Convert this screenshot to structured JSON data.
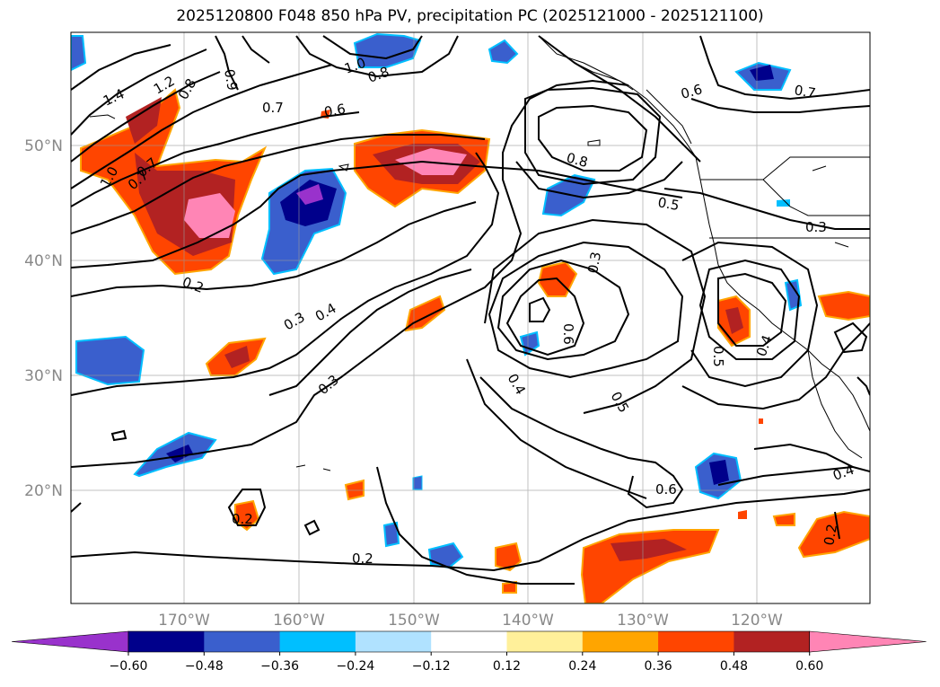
{
  "title": "2025120800 F048 850 hPa PV, precipitation PC (2025121000 - 2025121100)",
  "axes": {
    "lat_labels": [
      "50°N",
      "40°N",
      "30°N",
      "20°N"
    ],
    "lon_labels": [
      "170°W",
      "160°W",
      "150°W",
      "140°W",
      "130°W",
      "120°W"
    ]
  },
  "contour_labels": [
    "1.2",
    "1.4",
    "1.0",
    "0.7",
    "0.8",
    "0.9",
    "0.7",
    "0.6",
    "1.0",
    "0.8",
    "0.2",
    "0.6",
    "0.7",
    "0.5",
    "0.3",
    "0.8",
    "0.3",
    "0.4",
    "0.3",
    "0.6",
    "0.4",
    "0.5",
    "0.6",
    "0.5",
    "0.4",
    "0.2",
    "0.2",
    "0.4",
    "0.2",
    "0.3",
    "0.7"
  ],
  "colorbar": {
    "ticks": [
      "−0.60",
      "−0.48",
      "−0.36",
      "−0.24",
      "−0.12",
      "0.12",
      "0.24",
      "0.36",
      "0.48",
      "0.60"
    ],
    "colors": [
      "#9932cc",
      "#00008b",
      "#3a5fcd",
      "#00bfff",
      "#b0e2ff",
      "#ffffff",
      "#fff09a",
      "#ffa500",
      "#ff4500",
      "#b22222",
      "#ff85b5"
    ]
  },
  "precip_colors": {
    "pink": "#ff85b5",
    "darkred": "#b22222",
    "orangered": "#ff4500",
    "orange": "#ffa500",
    "yellow": "#fff09a",
    "navy": "#00008b",
    "royal": "#3a5fcd",
    "sky": "#00bfff",
    "purple": "#9932cc"
  }
}
